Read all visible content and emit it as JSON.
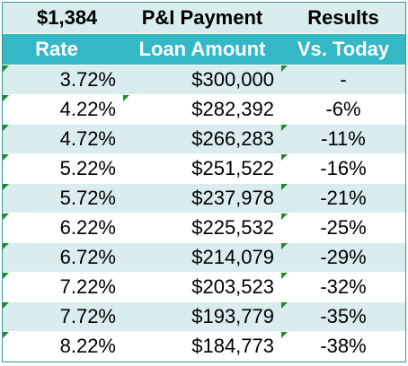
{
  "header": {
    "payment_amount": "$1,384",
    "payment_label": "P&I Payment",
    "results_label": "Results"
  },
  "columns": {
    "rate": "Rate",
    "loan_amount": "Loan Amount",
    "vs_today": "Vs. Today"
  },
  "rows": [
    {
      "rate": "3.72%",
      "loan": "$300,000",
      "vs": "-"
    },
    {
      "rate": "4.22%",
      "loan": "$282,392",
      "vs": "-6%"
    },
    {
      "rate": "4.72%",
      "loan": "$266,283",
      "vs": "-11%"
    },
    {
      "rate": "5.22%",
      "loan": "$251,522",
      "vs": "-16%"
    },
    {
      "rate": "5.72%",
      "loan": "$237,978",
      "vs": "-21%"
    },
    {
      "rate": "6.22%",
      "loan": "$225,532",
      "vs": "-25%"
    },
    {
      "rate": "6.72%",
      "loan": "$214,079",
      "vs": "-29%"
    },
    {
      "rate": "7.22%",
      "loan": "$203,523",
      "vs": "-32%"
    },
    {
      "rate": "7.72%",
      "loan": "$193,779",
      "vs": "-35%"
    },
    {
      "rate": "8.22%",
      "loan": "$184,773",
      "vs": "-38%"
    }
  ],
  "colors": {
    "header_light": "#d9ecee",
    "header_accent": "#34b8c6",
    "band": "#d9ecee",
    "error_marker": "#1a8c2a"
  }
}
